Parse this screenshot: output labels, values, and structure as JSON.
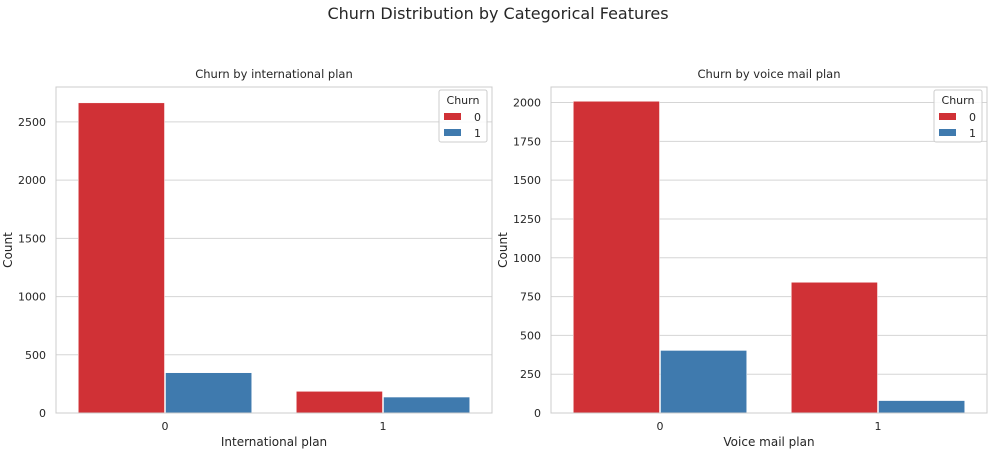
{
  "figure": {
    "suptitle": "Churn Distribution by Categorical Features"
  },
  "chart_data": [
    {
      "type": "bar",
      "title": "Churn by international plan",
      "xlabel": "International plan",
      "ylabel": "Count",
      "categories": [
        "0",
        "1"
      ],
      "ylim": [
        0,
        2800
      ],
      "yticks": [
        0,
        500,
        1000,
        1500,
        2000,
        2500
      ],
      "grid": "horizontal",
      "legend": {
        "title": "Churn",
        "position": "top-right"
      },
      "series": [
        {
          "name": "0",
          "color": "#d03136",
          "values": [
            2664,
            186
          ]
        },
        {
          "name": "1",
          "color": "#3f7aae",
          "values": [
            346,
            137
          ]
        }
      ]
    },
    {
      "type": "bar",
      "title": "Churn by voice mail plan",
      "xlabel": "Voice mail plan",
      "ylabel": "Count",
      "categories": [
        "0",
        "1"
      ],
      "ylim": [
        0,
        2100
      ],
      "yticks": [
        0,
        250,
        500,
        750,
        1000,
        1250,
        1500,
        1750,
        2000
      ],
      "grid": "horizontal",
      "legend": {
        "title": "Churn",
        "position": "top-right"
      },
      "series": [
        {
          "name": "0",
          "color": "#d03136",
          "values": [
            2008,
            842
          ]
        },
        {
          "name": "1",
          "color": "#3f7aae",
          "values": [
            403,
            80
          ]
        }
      ]
    }
  ]
}
